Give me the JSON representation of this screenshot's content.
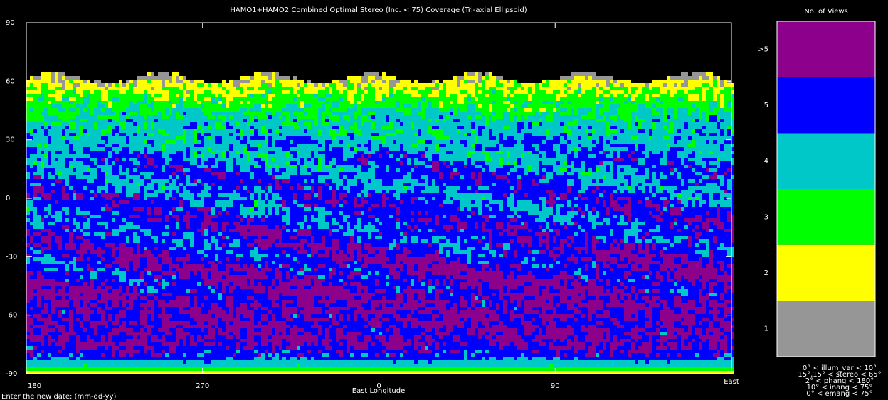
{
  "chart_data": {
    "type": "coverage-map",
    "title": "HAMO1+HAMO2 Combined Optimal Stereo (Inc. < 75) Coverage (Tri-axial Ellipsoid)",
    "x_label": "East Longitude",
    "x_direction_label": "East",
    "xlim": [
      180,
      540
    ],
    "xticks": [
      180,
      270,
      {
        "value": 360,
        "label": "0"
      },
      {
        "value": 450,
        "label": "90"
      }
    ],
    "ylim": [
      -90,
      90
    ],
    "yticks": [
      90,
      60,
      30,
      0,
      -30,
      -60,
      -90
    ],
    "legend": {
      "title": "No. of Views",
      "categories": [
        "1",
        "2",
        "3",
        "4",
        "5",
        ">5"
      ],
      "colors": [
        "#969696",
        "#ffff00",
        "#00ff00",
        "#00c8c8",
        "#0000ff",
        "#8c008c"
      ]
    },
    "conditions": [
      "0° < illum_var < 10°",
      "15°,15° < stereo < 65°",
      "2° < phang < 180°",
      "10° < inang < 75°",
      "0° < emang < 75°"
    ],
    "prompt": "Enter the new date: (mm-dd-yy)"
  }
}
